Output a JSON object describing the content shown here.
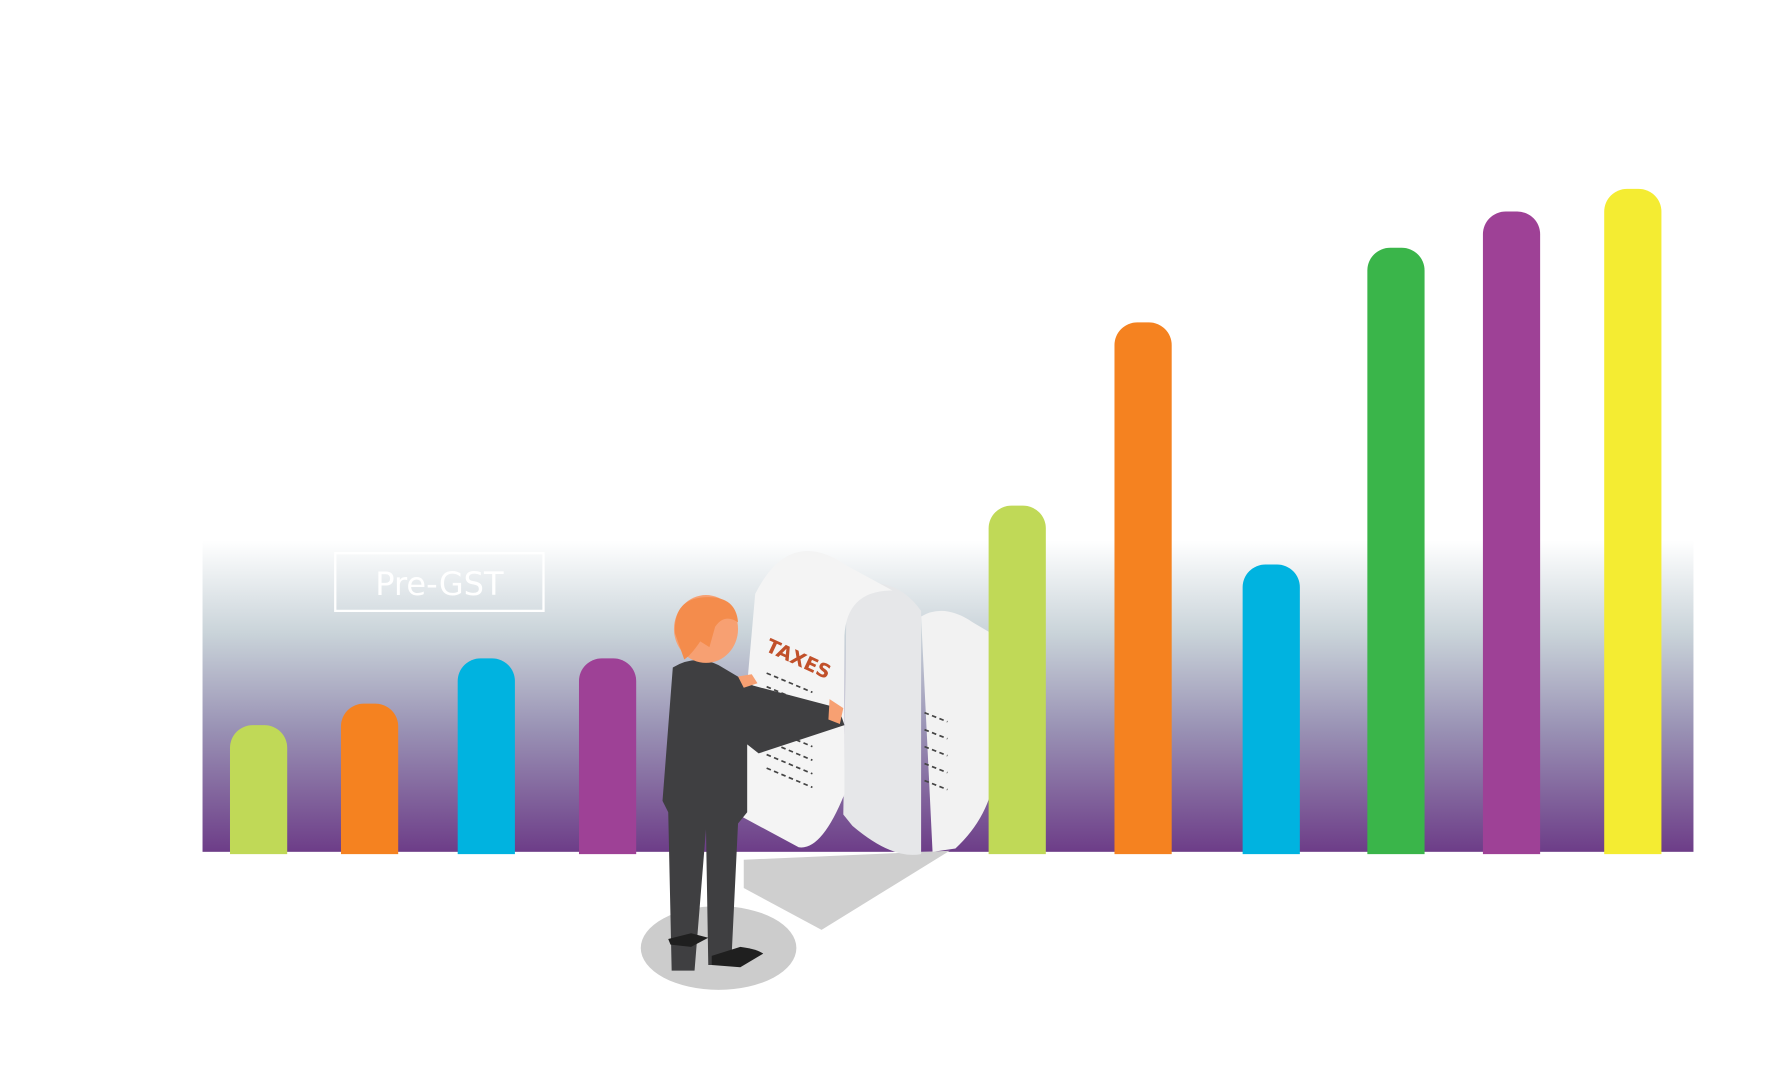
{
  "labels": {
    "pre_gst": "Pre-GST",
    "document_heading": "TAXES"
  }
}
